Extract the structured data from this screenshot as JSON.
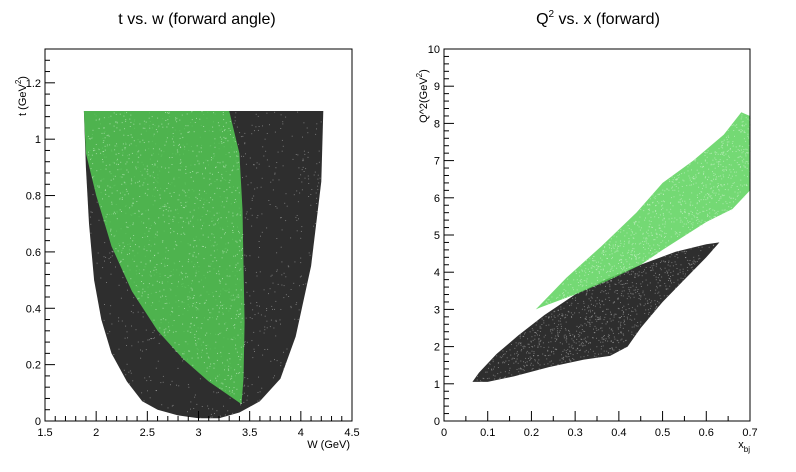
{
  "chart_data": [
    {
      "type": "scatter",
      "title": "t vs. w (forward angle)",
      "xlabel": "W (GeV)",
      "ylabel": "t (GeV^2)",
      "ylabel_main": "t (GeV",
      "ylabel_sup": "2",
      "ylabel_close": ")",
      "xlim": [
        1.5,
        4.5
      ],
      "ylim": [
        0,
        1.32
      ],
      "x_ticks": [
        1.5,
        2,
        2.5,
        3,
        3.5,
        4,
        4.5
      ],
      "x_tick_labels": [
        "1.5",
        "2",
        "2.5",
        "3",
        "3.5",
        "4",
        "4.5"
      ],
      "y_ticks": [
        0,
        0.2,
        0.4,
        0.6,
        0.8,
        1,
        1.2
      ],
      "y_tick_labels": [
        "0",
        "0.2",
        "0.4",
        "0.6",
        "0.8",
        "1",
        "1.2"
      ],
      "grid": false,
      "series": [
        {
          "color": "#000000",
          "region": [
            [
              1.88,
              1.1
            ],
            [
              4.22,
              1.1
            ],
            [
              4.2,
              0.85
            ],
            [
              4.1,
              0.55
            ],
            [
              3.95,
              0.3
            ],
            [
              3.8,
              0.15
            ],
            [
              3.6,
              0.07
            ],
            [
              3.4,
              0.03
            ],
            [
              3.2,
              0.01
            ],
            [
              3.0,
              0.01
            ],
            [
              2.8,
              0.02
            ],
            [
              2.6,
              0.04
            ],
            [
              2.45,
              0.07
            ],
            [
              2.3,
              0.14
            ],
            [
              2.15,
              0.24
            ],
            [
              2.05,
              0.36
            ],
            [
              1.98,
              0.5
            ],
            [
              1.93,
              0.7
            ],
            [
              1.9,
              0.9
            ]
          ]
        },
        {
          "color": "#55d155",
          "region": [
            [
              1.88,
              1.1
            ],
            [
              2.35,
              1.1
            ],
            [
              3.0,
              1.1
            ],
            [
              3.3,
              1.1
            ],
            [
              3.4,
              0.95
            ],
            [
              3.43,
              0.75
            ],
            [
              3.44,
              0.55
            ],
            [
              3.45,
              0.35
            ],
            [
              3.44,
              0.15
            ],
            [
              3.42,
              0.06
            ],
            [
              3.3,
              0.09
            ],
            [
              3.1,
              0.14
            ],
            [
              2.85,
              0.22
            ],
            [
              2.6,
              0.32
            ],
            [
              2.35,
              0.46
            ],
            [
              2.15,
              0.62
            ],
            [
              2.0,
              0.8
            ],
            [
              1.9,
              0.95
            ]
          ]
        }
      ]
    },
    {
      "type": "scatter",
      "title_main": "Q",
      "title_sup": "2",
      "title_rest": " vs. x (forward)",
      "xlabel_main": "x",
      "xlabel_sub": "bj",
      "ylabel_main": "Q^2(GeV",
      "ylabel_sup": "2",
      "ylabel_close": ")",
      "xlim": [
        0,
        0.7
      ],
      "ylim": [
        0,
        10
      ],
      "x_ticks": [
        0,
        0.1,
        0.2,
        0.3,
        0.4,
        0.5,
        0.6,
        0.7
      ],
      "x_tick_labels": [
        "0",
        "0.1",
        "0.2",
        "0.3",
        "0.4",
        "0.5",
        "0.6",
        "0.7"
      ],
      "y_ticks": [
        0,
        1,
        2,
        3,
        4,
        5,
        6,
        7,
        8,
        9,
        10
      ],
      "y_tick_labels": [
        "0",
        "1",
        "2",
        "3",
        "4",
        "5",
        "6",
        "7",
        "8",
        "9",
        "10"
      ],
      "grid": false,
      "series": [
        {
          "color": "#000000",
          "region": [
            [
              0.065,
              1.05
            ],
            [
              0.08,
              1.3
            ],
            [
              0.12,
              1.8
            ],
            [
              0.17,
              2.3
            ],
            [
              0.23,
              2.85
            ],
            [
              0.3,
              3.4
            ],
            [
              0.37,
              3.8
            ],
            [
              0.45,
              4.2
            ],
            [
              0.53,
              4.55
            ],
            [
              0.6,
              4.75
            ],
            [
              0.63,
              4.8
            ],
            [
              0.6,
              4.4
            ],
            [
              0.55,
              3.8
            ],
            [
              0.5,
              3.2
            ],
            [
              0.45,
              2.5
            ],
            [
              0.42,
              2.0
            ],
            [
              0.38,
              1.75
            ],
            [
              0.32,
              1.65
            ],
            [
              0.24,
              1.45
            ],
            [
              0.16,
              1.2
            ],
            [
              0.1,
              1.05
            ]
          ]
        },
        {
          "color": "#55d155",
          "region": [
            [
              0.21,
              3.0
            ],
            [
              0.28,
              3.85
            ],
            [
              0.36,
              4.7
            ],
            [
              0.44,
              5.6
            ],
            [
              0.5,
              6.4
            ],
            [
              0.57,
              7.0
            ],
            [
              0.64,
              7.7
            ],
            [
              0.68,
              8.3
            ],
            [
              0.7,
              8.2
            ],
            [
              0.7,
              6.2
            ],
            [
              0.66,
              5.7
            ],
            [
              0.6,
              5.35
            ],
            [
              0.5,
              4.6
            ],
            [
              0.45,
              4.2
            ],
            [
              0.38,
              3.8
            ],
            [
              0.3,
              3.4
            ],
            [
              0.22,
              3.05
            ]
          ]
        }
      ]
    }
  ]
}
